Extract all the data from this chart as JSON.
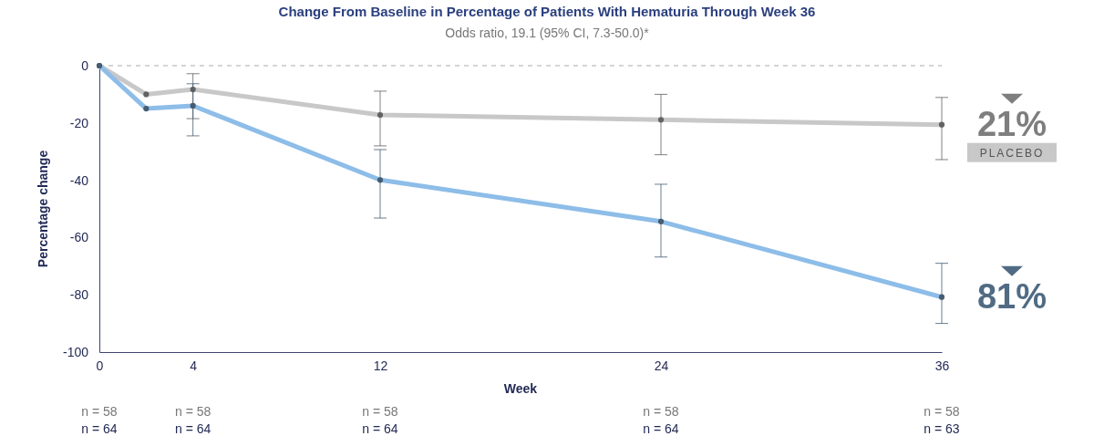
{
  "chart_data": {
    "type": "line",
    "title": "Change From Baseline in Percentage of Patients With Hematuria Through Week 36",
    "subtitle": "Odds ratio, 19.1 (95% CI, 7.3-50.0)*",
    "xlabel": "Week",
    "ylabel": "Percentage change",
    "x": [
      0,
      2,
      4,
      12,
      24,
      36
    ],
    "series": [
      {
        "name": "PLACEBO",
        "color": "#c8c8c8",
        "values": [
          0,
          -10,
          -8.3,
          -17.2,
          -18.9,
          -20.6
        ],
        "errors": [
          null,
          null,
          [
            -18.5,
            -2.8
          ],
          [
            -28,
            -8.9
          ],
          [
            -31.1,
            -10
          ],
          [
            -32.8,
            -11.1
          ]
        ]
      },
      {
        "color": "#8dbde8",
        "values": [
          0,
          -15,
          -14,
          -39.9,
          -54.4,
          -80.8
        ],
        "errors": [
          null,
          null,
          [
            -24.5,
            -6.3
          ],
          [
            -53.2,
            -29.3
          ],
          [
            -66.8,
            -41.4
          ],
          [
            -90,
            -69
          ]
        ]
      }
    ],
    "xlim": [
      0,
      36
    ],
    "xticks": [
      0,
      4,
      12,
      24,
      36
    ],
    "ylim": [
      -100,
      0
    ],
    "yticks": [
      0,
      -20,
      -40,
      -60,
      -80,
      -100
    ],
    "ref_lines": [
      {
        "axis": "y",
        "value": 0,
        "color": "#c8c8c8",
        "line_style": "dashed"
      }
    ],
    "marker": "circle",
    "legend": "right",
    "grid": false,
    "annotations": [
      {
        "text": "21%",
        "x": 36,
        "y": -20.6
      },
      {
        "text": "81%",
        "x": 36,
        "y": -80.8
      },
      "n = 58",
      "n = 64",
      "n = 58",
      "n = 64",
      "n = 58",
      "n = 64",
      "n = 58",
      "n = 64",
      "n = 58",
      "n = 63"
    ]
  }
}
